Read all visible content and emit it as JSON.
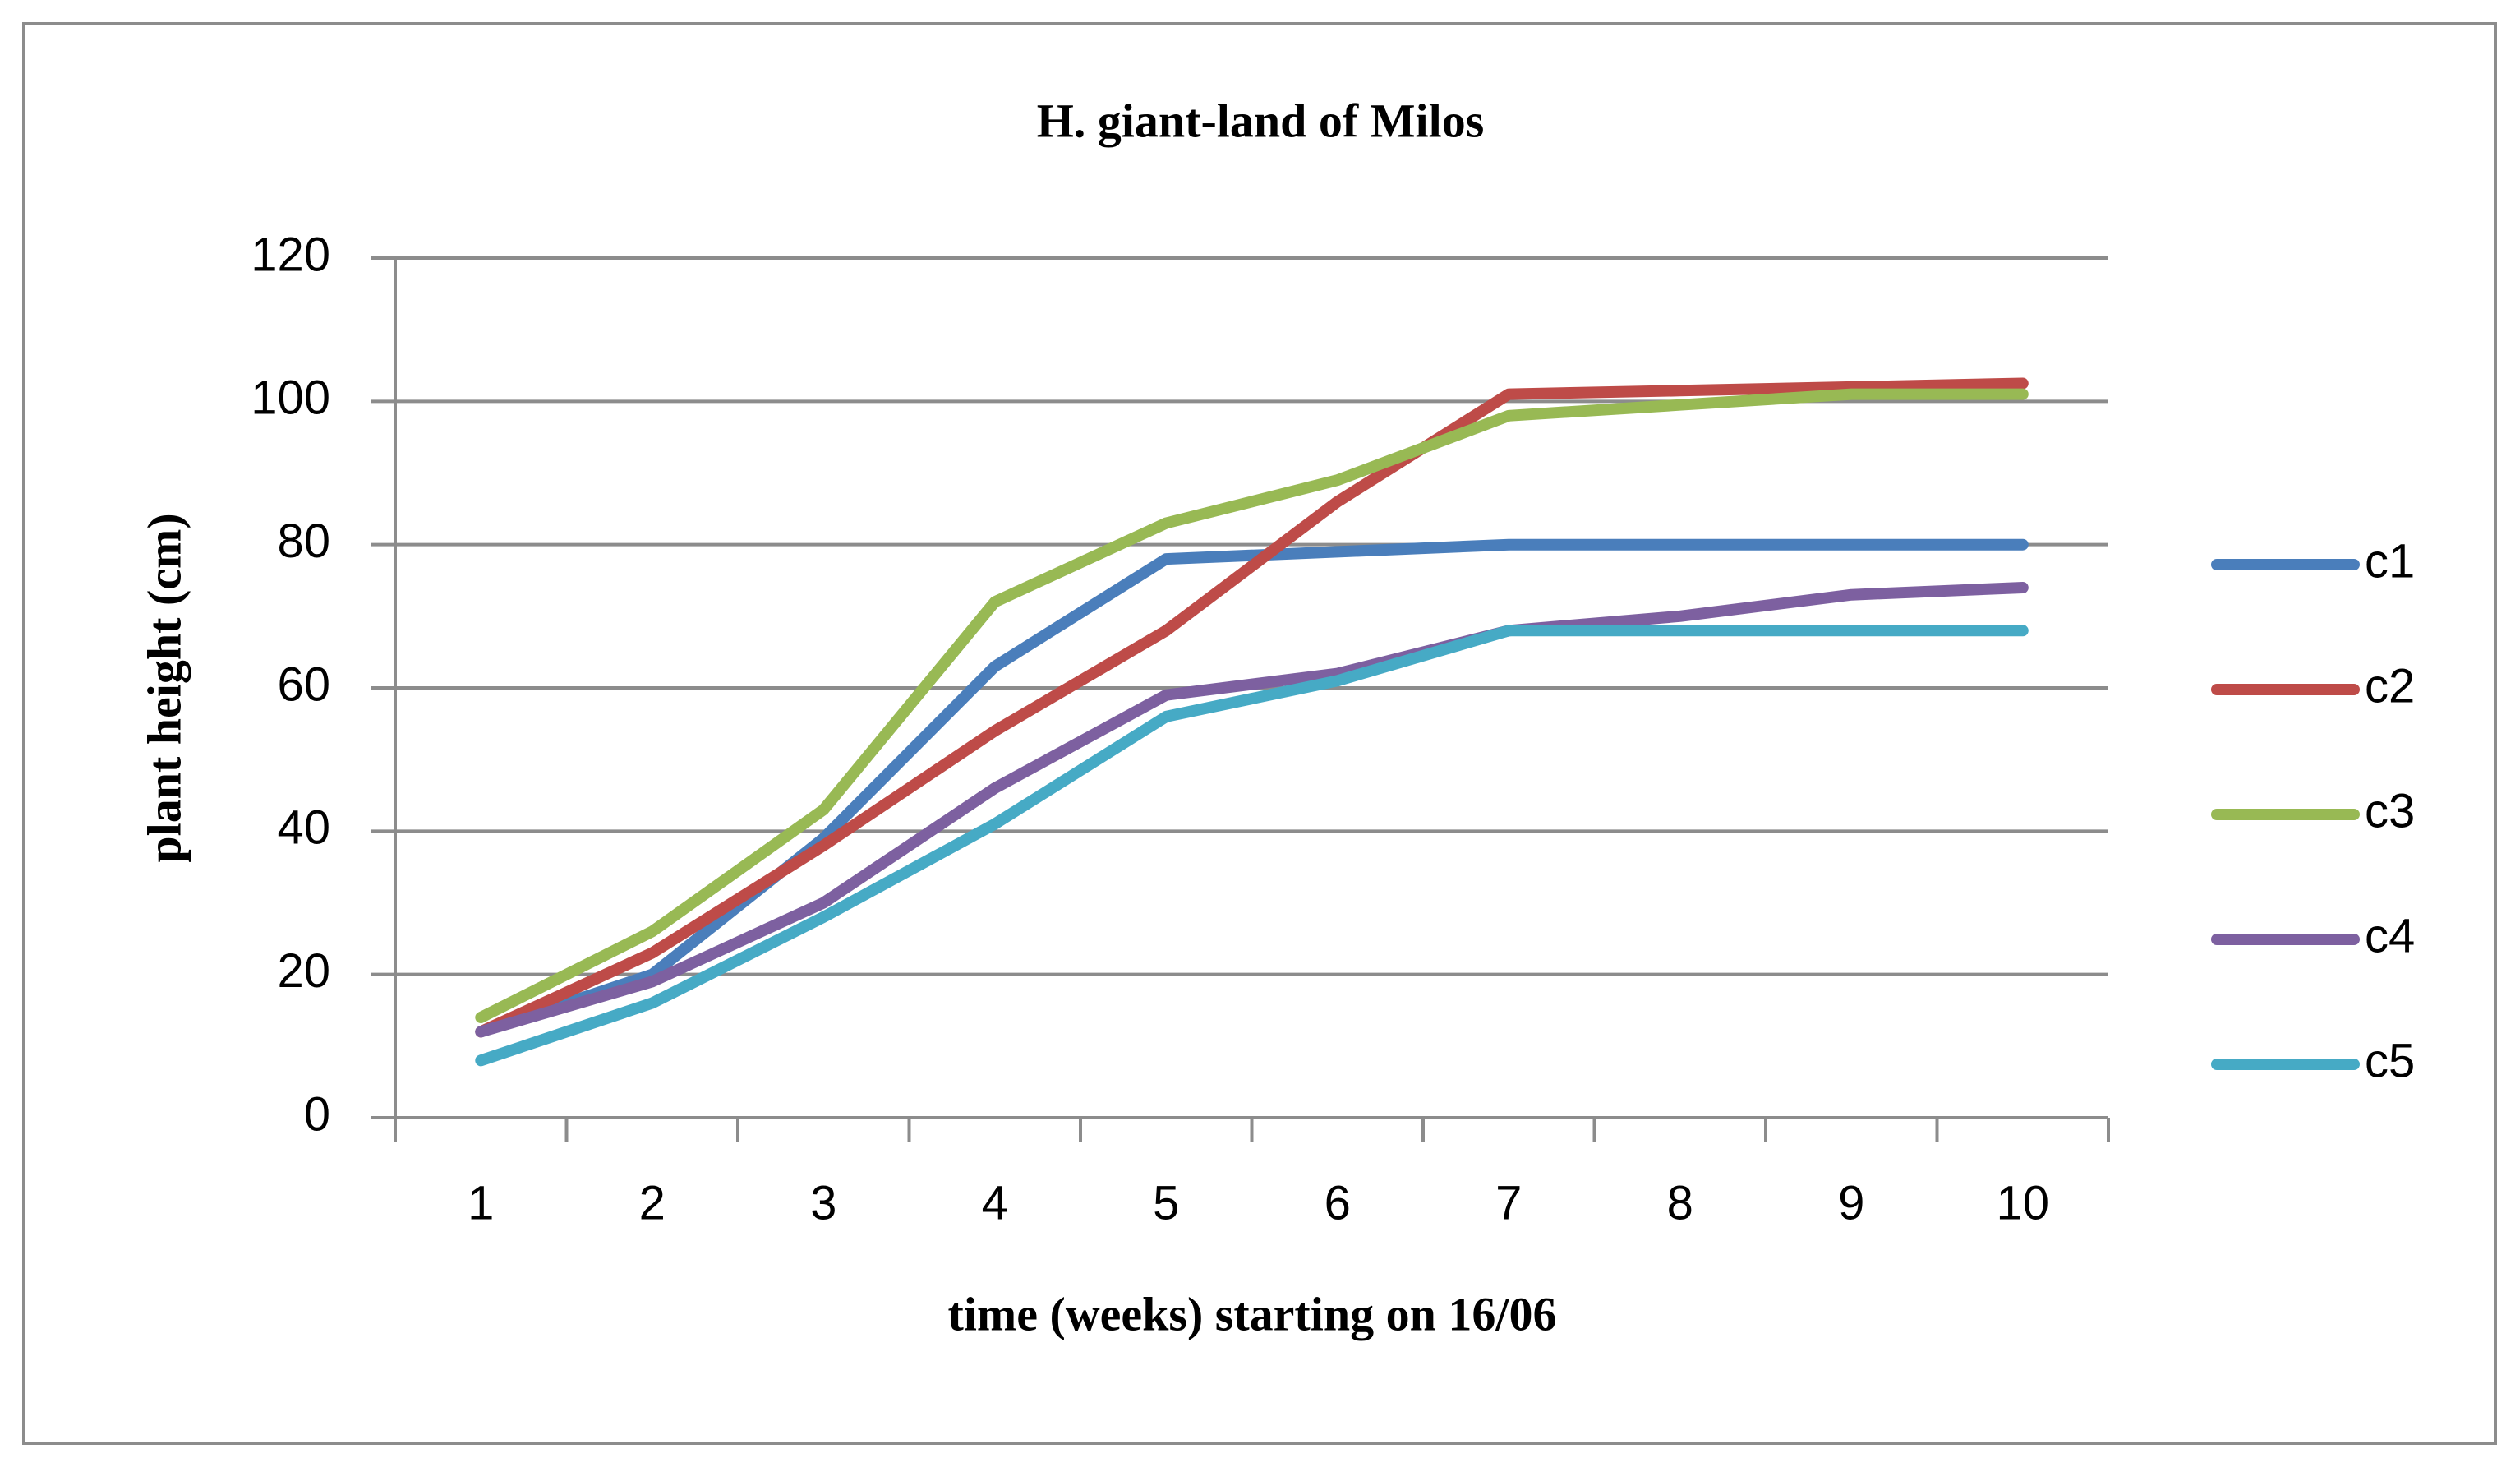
{
  "chart_data": {
    "type": "line",
    "title": "H. giant-land of Milos",
    "x_label": "time (weeks) starting on 16/06",
    "y_label": "plant height (cm)",
    "categories": [
      "1",
      "2",
      "3",
      "4",
      "5",
      "6",
      "7",
      "8",
      "9",
      "10"
    ],
    "series": [
      {
        "name": "c1",
        "color": "#4a7ebb",
        "values": [
          12,
          20,
          39,
          63,
          78,
          79,
          80,
          80,
          80,
          80
        ]
      },
      {
        "name": "c2",
        "color": "#be4b48",
        "values": [
          12,
          23,
          38,
          54,
          68,
          86,
          101,
          101.5,
          102,
          102.5
        ]
      },
      {
        "name": "c3",
        "color": "#98b954",
        "values": [
          14,
          26,
          43,
          72,
          83,
          89,
          98,
          99.5,
          101,
          101
        ]
      },
      {
        "name": "c4",
        "color": "#7d60a0",
        "values": [
          12,
          19,
          30,
          46,
          59,
          62,
          68,
          70,
          73,
          74
        ]
      },
      {
        "name": "c5",
        "color": "#46aac5",
        "values": [
          8,
          16,
          28,
          41,
          56,
          61,
          68,
          68,
          68,
          68
        ]
      }
    ],
    "ylim": [
      0,
      120
    ],
    "yticks": [
      0,
      20,
      40,
      60,
      80,
      100,
      120
    ],
    "grid": true,
    "legend": "right"
  }
}
